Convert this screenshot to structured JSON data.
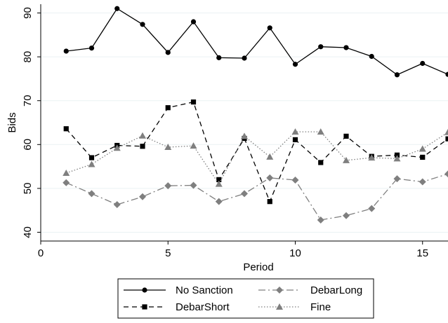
{
  "chart_data": {
    "type": "line",
    "title": "",
    "xlabel": "Period",
    "ylabel": "Bids",
    "xlim": [
      0,
      16
    ],
    "ylim": [
      38,
      92
    ],
    "x_ticks": [
      0,
      5,
      10,
      15
    ],
    "x_tick_labels": [
      "0",
      "5",
      "10",
      "15"
    ],
    "y_ticks": [
      40,
      50,
      60,
      70,
      80,
      90
    ],
    "y_tick_labels": [
      "40",
      "50",
      "60",
      "70",
      "80",
      "90"
    ],
    "grid": "horizontal",
    "legend_position": "bottom",
    "x": [
      1,
      2,
      3,
      4,
      5,
      6,
      7,
      8,
      9,
      10,
      11,
      12,
      13,
      14,
      15,
      16
    ],
    "series": [
      {
        "name": "No Sanction",
        "values": [
          81.3,
          82.0,
          91.0,
          87.4,
          81.0,
          88.0,
          79.8,
          79.7,
          86.6,
          78.3,
          82.3,
          82.1,
          80.1,
          75.9,
          78.5,
          76.0
        ],
        "color": "#000000",
        "line_style": "solid",
        "marker": "circle"
      },
      {
        "name": "DebarShort",
        "values": [
          63.6,
          57.0,
          59.8,
          59.6,
          68.4,
          69.7,
          52.0,
          61.4,
          47.0,
          61.1,
          55.9,
          61.9,
          57.3,
          57.6,
          57.1,
          61.3
        ],
        "color": "#000000",
        "line_style": "dashed",
        "marker": "square"
      },
      {
        "name": "DebarLong",
        "values": [
          51.3,
          48.8,
          46.3,
          48.1,
          50.6,
          50.7,
          47.0,
          48.8,
          52.4,
          51.9,
          42.8,
          43.8,
          45.4,
          52.2,
          51.5,
          53.3
        ],
        "color": "#7f7f7f",
        "line_style": "dash-dot",
        "marker": "diamond"
      },
      {
        "name": "Fine",
        "values": [
          53.5,
          55.5,
          59.2,
          62.0,
          59.4,
          59.7,
          51.0,
          61.9,
          57.2,
          62.9,
          62.9,
          56.4,
          57.0,
          56.8,
          59.0,
          62.8
        ],
        "color": "#7f7f7f",
        "line_style": "dotted",
        "marker": "triangle"
      }
    ]
  }
}
